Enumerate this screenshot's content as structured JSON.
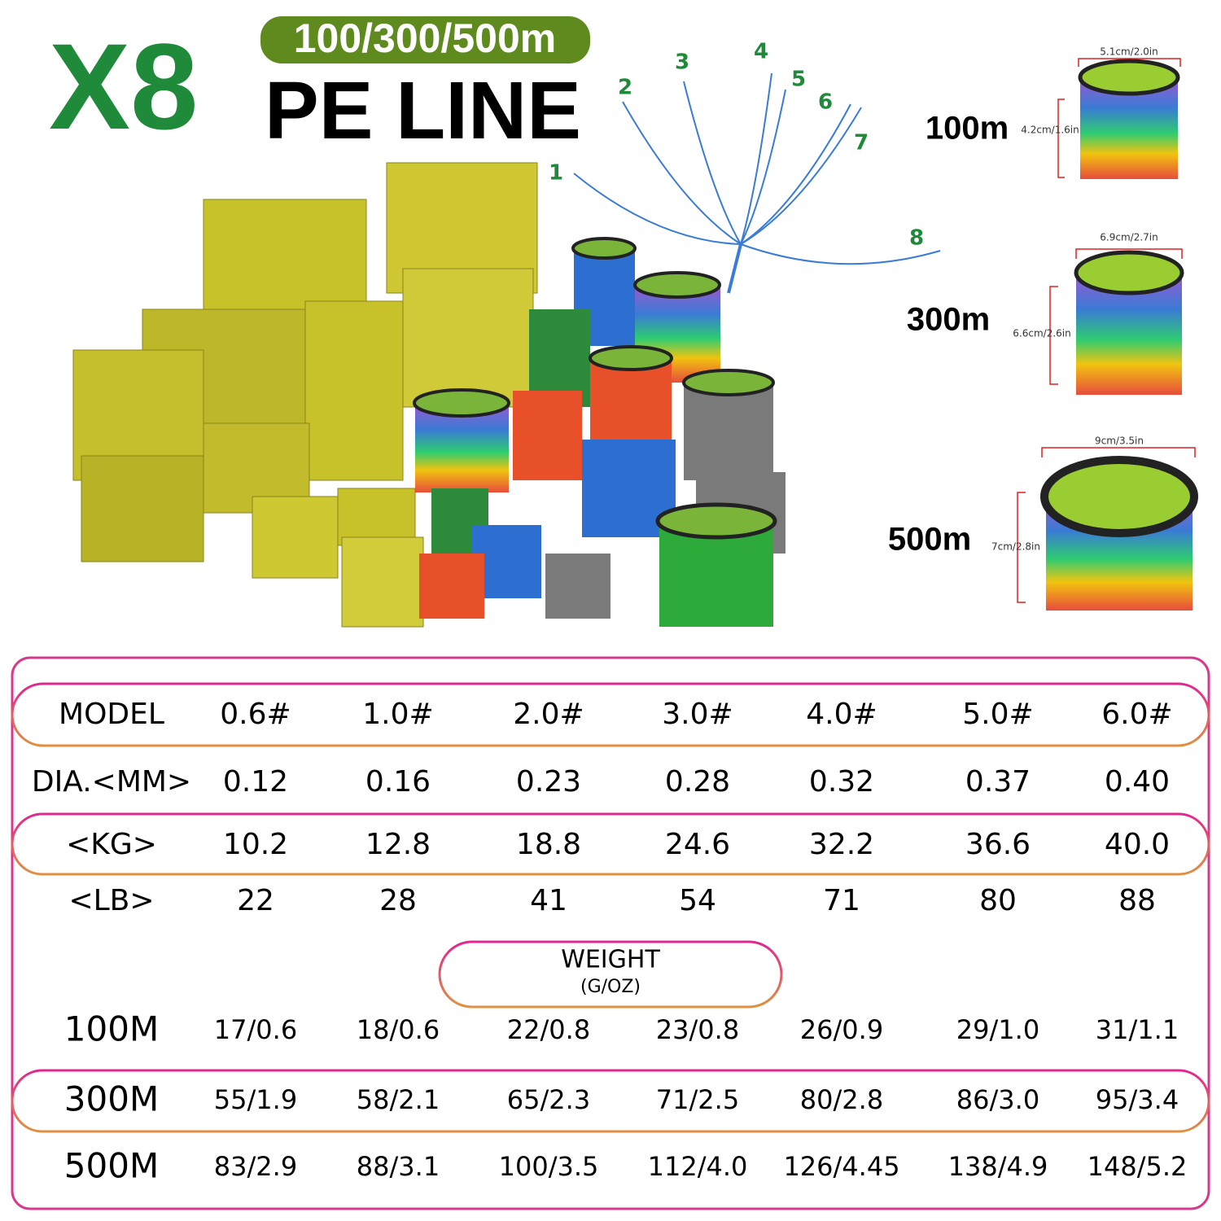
{
  "header": {
    "title": "X8",
    "length_badge": "100/300/500m",
    "subtitle": "PE LINE"
  },
  "strands": [
    "1",
    "2",
    "3",
    "4",
    "5",
    "6",
    "7",
    "8"
  ],
  "spools": [
    {
      "length": "100m",
      "width": "5.1cm/2.0in",
      "height": "4.2cm/1.6in"
    },
    {
      "length": "300m",
      "width": "6.9cm/2.7in",
      "height": "6.6cm/2.6in"
    },
    {
      "length": "500m",
      "width": "9cm/3.5in",
      "height": "7cm/2.8in"
    }
  ],
  "table": {
    "header": [
      "MODEL",
      "0.6#",
      "1.0#",
      "2.0#",
      "3.0#",
      "4.0#",
      "5.0#",
      "6.0#"
    ],
    "rows": [
      [
        "DIA.<MM>",
        "0.12",
        "0.16",
        "0.23",
        "0.28",
        "0.32",
        "0.37",
        "0.40"
      ],
      [
        "<KG>",
        "10.2",
        "12.8",
        "18.8",
        "24.6",
        "32.2",
        "36.6",
        "40.0"
      ],
      [
        "<LB>",
        "22",
        "28",
        "41",
        "54",
        "71",
        "80",
        "88"
      ]
    ],
    "weight_title": "WEIGHT",
    "weight_unit": "(G/OZ)",
    "weight_rows": [
      [
        "100M",
        "17/0.6",
        "18/0.6",
        "22/0.8",
        "23/0.8",
        "26/0.9",
        "29/1.0",
        "31/1.1"
      ],
      [
        "300M",
        "55/1.9",
        "58/2.1",
        "65/2.3",
        "71/2.5",
        "80/2.8",
        "86/3.0",
        "95/3.4"
      ],
      [
        "500M",
        "83/2.9",
        "88/3.1",
        "100/3.5",
        "112/4.0",
        "126/4.45",
        "138/4.9",
        "148/5.2"
      ]
    ]
  }
}
